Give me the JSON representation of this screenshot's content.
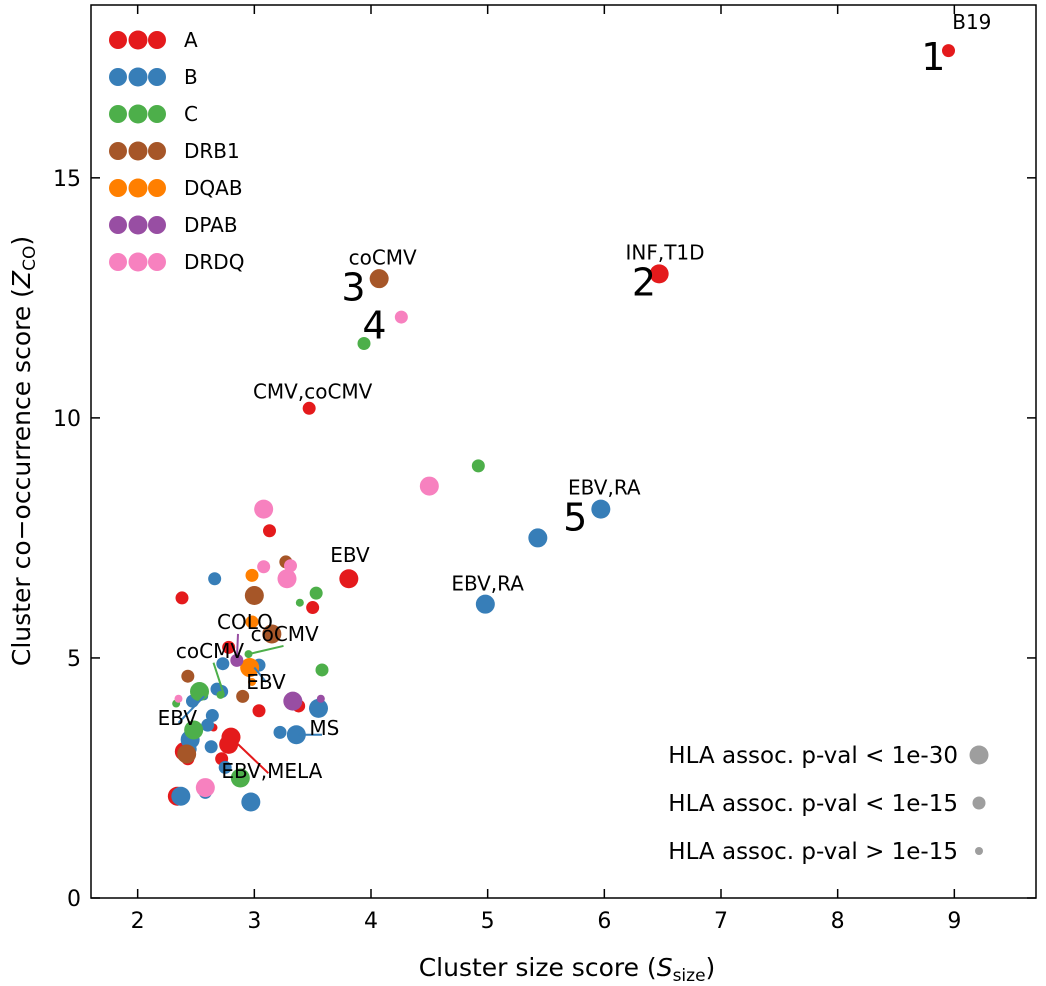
{
  "chart_data": {
    "type": "scatter",
    "xlabel": "Cluster size score (",
    "xlabel_var": "S",
    "xlabel_sub": "size",
    "xlabel_end": ")",
    "ylabel": "Cluster co−occurrence score (",
    "ylabel_var": "Z",
    "ylabel_sub": "CO",
    "ylabel_end": ")",
    "xlim": [
      1.6,
      9.7
    ],
    "ylim": [
      0,
      18.6
    ],
    "xticks": [
      2,
      3,
      4,
      5,
      6,
      7,
      8,
      9
    ],
    "yticks": [
      0,
      5,
      10,
      15
    ],
    "grid": false,
    "legend_position": "top-left",
    "colors": {
      "A": "#e41a1c",
      "B": "#377eb8",
      "C": "#4daf4a",
      "DRB1": "#a65628",
      "DQAB": "#ff7f00",
      "DPAB": "#984ea3",
      "DRDQ": "#f781bf"
    },
    "series": [
      {
        "name": "A",
        "points": [
          [
            8.95,
            17.65,
            2
          ],
          [
            6.47,
            13.0,
            3
          ],
          [
            3.47,
            10.2,
            2
          ],
          [
            3.81,
            6.65,
            3
          ],
          [
            3.13,
            7.65,
            2
          ],
          [
            2.38,
            6.25,
            2
          ],
          [
            3.5,
            6.05,
            2
          ],
          [
            2.78,
            5.22,
            2
          ],
          [
            3.04,
            3.9,
            2
          ],
          [
            3.38,
            4.0,
            2
          ],
          [
            2.65,
            3.55,
            1
          ],
          [
            2.72,
            2.9,
            2
          ],
          [
            2.8,
            3.35,
            3
          ],
          [
            2.78,
            3.2,
            3
          ],
          [
            2.43,
            2.9,
            2
          ],
          [
            2.4,
            3.05,
            3
          ],
          [
            2.34,
            2.12,
            3
          ]
        ]
      },
      {
        "name": "B",
        "points": [
          [
            5.97,
            8.1,
            3
          ],
          [
            5.43,
            7.5,
            3
          ],
          [
            4.98,
            6.12,
            3
          ],
          [
            2.66,
            6.65,
            2
          ],
          [
            3.04,
            4.85,
            2
          ],
          [
            2.73,
            4.88,
            2
          ],
          [
            2.64,
            3.8,
            2
          ],
          [
            2.57,
            4.2,
            1
          ],
          [
            2.68,
            4.35,
            2
          ],
          [
            2.47,
            4.1,
            2
          ],
          [
            2.72,
            4.3,
            2
          ],
          [
            2.6,
            3.6,
            2
          ],
          [
            2.45,
            3.3,
            3
          ],
          [
            2.45,
            3.1,
            2
          ],
          [
            2.63,
            3.15,
            2
          ],
          [
            2.75,
            2.72,
            2
          ],
          [
            2.58,
            2.2,
            2
          ],
          [
            2.37,
            2.12,
            3
          ],
          [
            2.97,
            2.0,
            3
          ],
          [
            3.22,
            3.45,
            2
          ],
          [
            3.36,
            3.4,
            3
          ],
          [
            3.55,
            3.95,
            3
          ]
        ]
      },
      {
        "name": "C",
        "points": [
          [
            3.94,
            11.55,
            2
          ],
          [
            4.92,
            9.0,
            2
          ],
          [
            3.53,
            6.35,
            2
          ],
          [
            3.39,
            6.15,
            1
          ],
          [
            2.95,
            5.08,
            1
          ],
          [
            3.58,
            4.75,
            2
          ],
          [
            2.53,
            4.3,
            3
          ],
          [
            2.71,
            4.23,
            1
          ],
          [
            2.48,
            3.5,
            3
          ],
          [
            2.88,
            2.5,
            3
          ],
          [
            2.33,
            4.05,
            1
          ]
        ]
      },
      {
        "name": "DRB1",
        "points": [
          [
            4.07,
            12.9,
            3
          ],
          [
            3.27,
            7.0,
            2
          ],
          [
            3.0,
            6.3,
            3
          ],
          [
            3.15,
            5.5,
            3
          ],
          [
            2.43,
            4.62,
            2
          ],
          [
            2.9,
            4.2,
            2
          ],
          [
            2.42,
            3.0,
            3
          ]
        ]
      },
      {
        "name": "DQAB",
        "points": [
          [
            2.98,
            6.72,
            2
          ],
          [
            2.98,
            5.75,
            2
          ],
          [
            2.96,
            4.8,
            3
          ],
          [
            2.98,
            4.5,
            1
          ]
        ]
      },
      {
        "name": "DPAB",
        "points": [
          [
            2.85,
            4.95,
            2
          ],
          [
            3.33,
            4.1,
            3
          ],
          [
            3.57,
            4.15,
            1
          ]
        ]
      },
      {
        "name": "DRDQ",
        "points": [
          [
            4.26,
            12.1,
            2
          ],
          [
            4.5,
            8.58,
            3
          ],
          [
            3.08,
            8.1,
            3
          ],
          [
            3.31,
            6.92,
            2
          ],
          [
            3.08,
            6.9,
            2
          ],
          [
            3.28,
            6.65,
            3
          ],
          [
            2.35,
            4.15,
            1
          ],
          [
            2.58,
            2.3,
            3
          ]
        ]
      }
    ],
    "annotations": [
      {
        "text": "B19",
        "x": 9.15,
        "y": 18.1
      },
      {
        "text": "INF,T1D",
        "x": 6.52,
        "y": 13.3
      },
      {
        "text": "coCMV",
        "x": 4.1,
        "y": 13.2
      },
      {
        "text": "CMV,coCMV",
        "x": 3.5,
        "y": 10.4
      },
      {
        "text": "EBV,RA",
        "x": 6.0,
        "y": 8.4
      },
      {
        "text": "EBV,RA",
        "x": 5.0,
        "y": 6.4
      },
      {
        "text": "EBV",
        "x": 3.82,
        "y": 7.0
      },
      {
        "text": "COLO",
        "x": 2.92,
        "y": 5.6
      },
      {
        "text": "coCMV",
        "x": 3.26,
        "y": 5.35
      },
      {
        "text": "coCMV",
        "x": 2.62,
        "y": 5.0
      },
      {
        "text": "EBV",
        "x": 3.1,
        "y": 4.35
      },
      {
        "text": "EBV",
        "x": 2.34,
        "y": 3.6
      },
      {
        "text": "MS",
        "x": 3.6,
        "y": 3.4
      },
      {
        "text": "EBV,MELA",
        "x": 3.15,
        "y": 2.5
      }
    ],
    "rank_labels": [
      {
        "text": "1",
        "x": 8.82,
        "y": 17.5
      },
      {
        "text": "2",
        "x": 6.34,
        "y": 12.8
      },
      {
        "text": "3",
        "x": 3.85,
        "y": 12.7
      },
      {
        "text": "4",
        "x": 4.03,
        "y": 11.9
      },
      {
        "text": "5",
        "x": 5.75,
        "y": 7.9
      }
    ],
    "connectors": [
      {
        "x1": 2.86,
        "y1": 5.5,
        "x2": 2.85,
        "y2": 4.95,
        "color": "#984ea3"
      },
      {
        "x1": 3.25,
        "y1": 5.25,
        "x2": 2.95,
        "y2": 5.08,
        "color": "#4daf4a"
      },
      {
        "x1": 2.65,
        "y1": 4.9,
        "x2": 2.74,
        "y2": 4.23,
        "color": "#4daf4a"
      },
      {
        "x1": 3.1,
        "y1": 4.5,
        "x2": 3.0,
        "y2": 4.8,
        "color": "#377eb8"
      },
      {
        "x1": 2.35,
        "y1": 3.65,
        "x2": 2.57,
        "y2": 4.2,
        "color": "#377eb8"
      },
      {
        "x1": 3.58,
        "y1": 3.4,
        "x2": 3.38,
        "y2": 3.4,
        "color": "#377eb8"
      },
      {
        "x1": 3.12,
        "y1": 2.6,
        "x2": 2.84,
        "y2": 3.25,
        "color": "#e41a1c"
      }
    ],
    "legend": [
      {
        "label": "A",
        "key": "A"
      },
      {
        "label": "B",
        "key": "B"
      },
      {
        "label": "C",
        "key": "C"
      },
      {
        "label": "DRB1",
        "key": "DRB1"
      },
      {
        "label": "DQAB",
        "key": "DQAB"
      },
      {
        "label": "DPAB",
        "key": "DPAB"
      },
      {
        "label": "DRDQ",
        "key": "DRDQ"
      }
    ],
    "size_legend": [
      {
        "label": "HLA assoc. p-val < 1e-30",
        "size": 3
      },
      {
        "label": "HLA assoc. p-val < 1e-15",
        "size": 2
      },
      {
        "label": "HLA assoc. p-val > 1e-15",
        "size": 1
      }
    ],
    "size_legend_color": "#9e9e9e"
  }
}
